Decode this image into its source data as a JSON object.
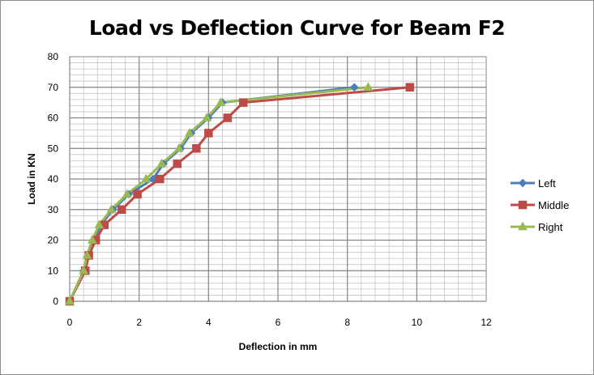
{
  "chart_data": {
    "type": "line",
    "title": "Load vs Deflection Curve for Beam F2",
    "xlabel": "Deflection in mm",
    "ylabel": "Load in KN",
    "xlim": [
      0,
      12
    ],
    "ylim": [
      0,
      80
    ],
    "xticks": [
      0,
      2,
      4,
      6,
      8,
      10,
      12
    ],
    "yticks": [
      0,
      10,
      20,
      30,
      40,
      50,
      60,
      70,
      80
    ],
    "grid": true,
    "legend_position": "right",
    "series": [
      {
        "name": "Left",
        "color": "#4a7ebb",
        "marker": "diamond",
        "points": [
          [
            0,
            0
          ],
          [
            0.4,
            10
          ],
          [
            0.55,
            15
          ],
          [
            0.7,
            20
          ],
          [
            0.9,
            25
          ],
          [
            1.25,
            30
          ],
          [
            1.7,
            35
          ],
          [
            2.4,
            40
          ],
          [
            2.7,
            45
          ],
          [
            3.2,
            50
          ],
          [
            3.5,
            55
          ],
          [
            4.0,
            60
          ],
          [
            4.4,
            65
          ],
          [
            8.2,
            70
          ]
        ]
      },
      {
        "name": "Middle",
        "color": "#be4b48",
        "marker": "square",
        "points": [
          [
            0,
            0
          ],
          [
            0.45,
            10
          ],
          [
            0.55,
            15
          ],
          [
            0.75,
            20
          ],
          [
            1.0,
            25
          ],
          [
            1.5,
            30
          ],
          [
            1.95,
            35
          ],
          [
            2.6,
            40
          ],
          [
            3.1,
            45
          ],
          [
            3.65,
            50
          ],
          [
            4.0,
            55
          ],
          [
            4.55,
            60
          ],
          [
            5.0,
            65
          ],
          [
            9.8,
            70
          ]
        ]
      },
      {
        "name": "Right",
        "color": "#98b954",
        "marker": "triangle",
        "points": [
          [
            0,
            0
          ],
          [
            0.4,
            10
          ],
          [
            0.5,
            15
          ],
          [
            0.65,
            20
          ],
          [
            0.85,
            25
          ],
          [
            1.2,
            30
          ],
          [
            1.65,
            35
          ],
          [
            2.2,
            40
          ],
          [
            2.65,
            45
          ],
          [
            3.15,
            50
          ],
          [
            3.45,
            55
          ],
          [
            3.95,
            60
          ],
          [
            4.35,
            65
          ],
          [
            8.6,
            70
          ]
        ]
      }
    ]
  }
}
